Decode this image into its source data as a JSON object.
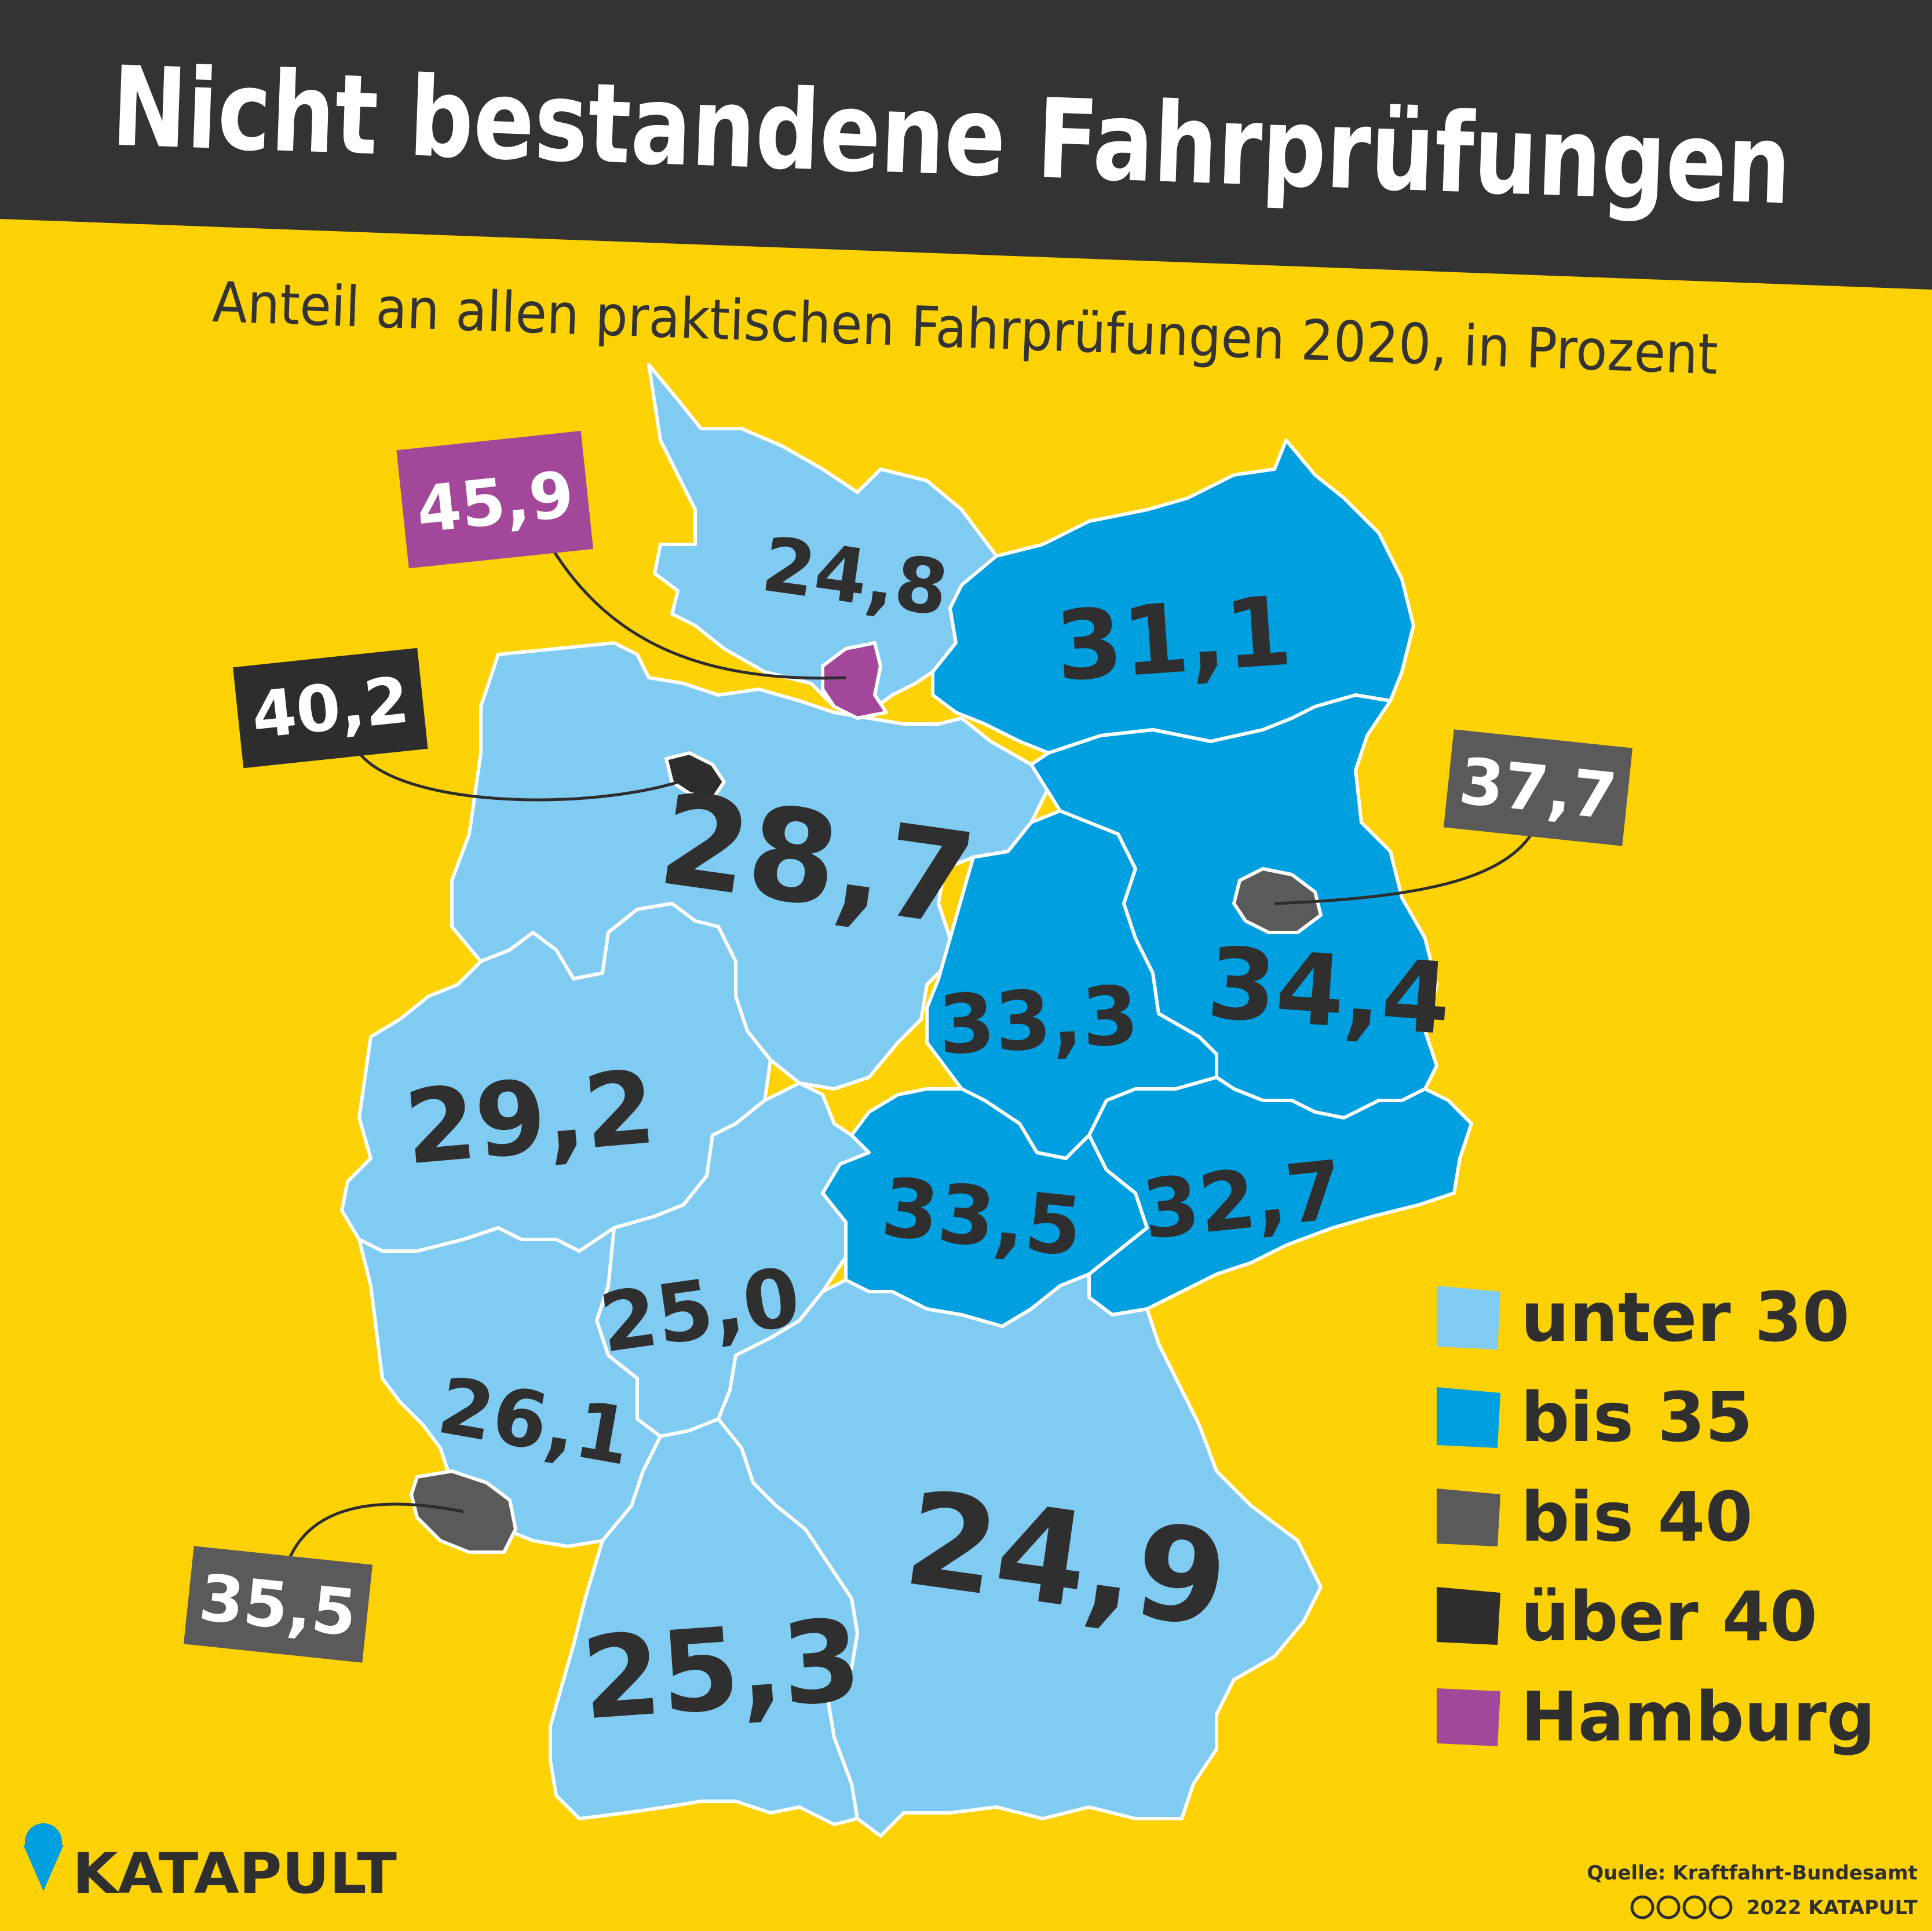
{
  "title": "Nicht bestandene Fahrprüfungen",
  "subtitle": "Anteil an allen praktischen Fahrprüfungen 2020, in Prozent",
  "colors": {
    "background": "#fdd204",
    "header": "#333333",
    "unter_30": "#80cbf1",
    "bis_35": "#009fe0",
    "bis_40": "#5a5a5a",
    "ueber_40": "#2d2d2d",
    "hamburg": "#a3479a"
  },
  "regions": [
    {
      "name": "Schleswig-Holstein",
      "value": "24,8",
      "category": "unter_30"
    },
    {
      "name": "Mecklenburg-Vorpommern",
      "value": "31,1",
      "category": "bis_35"
    },
    {
      "name": "Niedersachsen",
      "value": "28,7",
      "category": "unter_30"
    },
    {
      "name": "Sachsen-Anhalt",
      "value": "33,3",
      "category": "bis_35"
    },
    {
      "name": "Brandenburg",
      "value": "34,4",
      "category": "bis_35"
    },
    {
      "name": "Nordrhein-Westfalen",
      "value": "29,2",
      "category": "unter_30"
    },
    {
      "name": "Thüringen",
      "value": "33,5",
      "category": "bis_35"
    },
    {
      "name": "Sachsen",
      "value": "32,7",
      "category": "bis_35"
    },
    {
      "name": "Hessen",
      "value": "25,0",
      "category": "unter_30"
    },
    {
      "name": "Rheinland-Pfalz",
      "value": "26,1",
      "category": "unter_30"
    },
    {
      "name": "Bayern",
      "value": "24,9",
      "category": "unter_30"
    },
    {
      "name": "Baden-Württemberg",
      "value": "25,3",
      "category": "unter_30"
    }
  ],
  "callouts": [
    {
      "name": "Hamburg",
      "value": "45,9",
      "category": "hamburg"
    },
    {
      "name": "Bremen",
      "value": "40,2",
      "category": "ueber_40"
    },
    {
      "name": "Berlin",
      "value": "37,7",
      "category": "bis_40"
    },
    {
      "name": "Saarland",
      "value": "35,5",
      "category": "bis_40"
    }
  ],
  "legend": [
    {
      "label": "unter 30",
      "category": "unter_30"
    },
    {
      "label": "bis 35",
      "category": "bis_35"
    },
    {
      "label": "bis 40",
      "category": "bis_40"
    },
    {
      "label": "über 40",
      "category": "ueber_40"
    },
    {
      "label": "Hamburg",
      "category": "hamburg"
    }
  ],
  "source": "Quelle: Kraftfahrt-Bundesamt",
  "copyright": "2022 KATAPULT",
  "license_icons": [
    "cc-icon",
    "by-icon",
    "nc-icon",
    "nd-icon"
  ],
  "logo": "KATAPULT"
}
